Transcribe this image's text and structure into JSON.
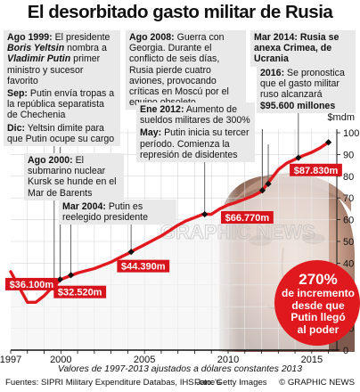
{
  "title": "El desorbitado gasto militar de Rusia",
  "annotations": {
    "ago1999": {
      "head": "Ago 1999:",
      "t1": " El presidente ",
      "n1": "Boris Yeltsin",
      "t2": " nombra a ",
      "n2": "Vladimir Putin",
      "t3": " primer ministro y sucesor favorito"
    },
    "sep": {
      "head": "Sep:",
      "text": " Putin envía tropas a la república separatista de Chechenia"
    },
    "dic": {
      "head": "Dic:",
      "text": " Yeltsin dimite para que Putin ocupe su cargo"
    },
    "ago2000": {
      "head": "Ago 2000:",
      "text": " El submarino nuclear Kursk se hunde en el Mar de Barents"
    },
    "mar2004": {
      "head": "Mar 2004:",
      "text": " Putin es reelegido presidente"
    },
    "ago2008": {
      "head": "Ago 2008:",
      "text": " Guerra con Georgia. Durante el conflicto de seis días, Rusia pierde cuatro aviones, provocando críticas en Moscú por el equipo obsoleto"
    },
    "ene2012": {
      "head": "Ene 2012:",
      "text": " Aumento de sueldos militares de 300%"
    },
    "may": {
      "head": "May:",
      "text": " Putin inicia su tercer período. Comienza la represión de disidentes"
    },
    "mar2014": {
      "head": "Mar 2014:",
      "text": " Rusia se anexa Crimea, de Ucrania"
    },
    "y2016": {
      "head": "2016:",
      "text": " Se pronostica que el gasto militar ruso alcanzará ",
      "value": "$95.600 millones"
    }
  },
  "increase": {
    "pct": "270%",
    "line1": "de incremento",
    "line2": "desde que",
    "line3": "Putin llegó",
    "line4": "al poder"
  },
  "footnote": "Valores de 1997-2013 ajustados a dólares constantes 2013",
  "source": "Fuentes: SIPRI Military Expenditure Databas, IHS Jane's",
  "photo_credit": "Foto: Getty Images",
  "credit": "© GRAPHIC NEWS",
  "watermark": "GRAPHIC NEWS",
  "colors": {
    "line": "#e0191f",
    "label_bg": "#d7141c",
    "box_bg": "#e9e9e9",
    "circle": "#e0191f",
    "marker": "#111111"
  },
  "chart_data": {
    "type": "line",
    "title": "El desorbitado gasto militar de Rusia",
    "ylabel": "$mdm",
    "xlim": [
      1997,
      2016.5
    ],
    "ylim": [
      0,
      100
    ],
    "x_ticks": [
      1997,
      2000,
      2005,
      2010,
      2015
    ],
    "y_ticks": [
      0,
      10,
      20,
      30,
      40,
      50,
      60,
      70,
      80,
      90,
      100
    ],
    "series": [
      {
        "values_x": [
          1997,
          1997.5,
          1998,
          1998.5,
          1999,
          1999.5,
          2000,
          2000.5,
          2001,
          2001.5,
          2002,
          2002.5,
          2003,
          2003.5,
          2004,
          2004.5,
          2005,
          2005.5,
          2006,
          2006.5,
          2007,
          2007.5,
          2008,
          2008.5,
          2009,
          2009.5,
          2010,
          2010.5,
          2011,
          2011.5,
          2012,
          2012.5,
          2013,
          2013.5,
          2014,
          2014.5,
          2015,
          2015.5,
          2016
        ],
        "values_y": [
          36.1,
          29,
          22,
          22,
          25,
          29,
          32.5,
          34,
          35.5,
          36.5,
          37.5,
          39,
          40.5,
          42.5,
          44.4,
          46.5,
          48.5,
          50.5,
          52.5,
          55,
          57.5,
          59.5,
          61,
          62.5,
          62.5,
          65,
          66.8,
          68,
          69.5,
          71,
          73,
          78,
          83,
          86,
          87.8,
          89.5,
          91,
          93,
          95.6
        ]
      }
    ],
    "value_labels": [
      {
        "x": 1997,
        "y": 36.1,
        "label": "$36.100m"
      },
      {
        "x": 2000,
        "y": 32.5,
        "label": "$32.520m"
      },
      {
        "x": 2004,
        "y": 44.4,
        "label": "$44.390m"
      },
      {
        "x": 2010,
        "y": 66.8,
        "label": "$66.770m"
      },
      {
        "x": 2014,
        "y": 87.8,
        "label": "$87.830m"
      }
    ],
    "event_markers": [
      {
        "x": 1999.6,
        "y": 30.5
      },
      {
        "x": 1999.95,
        "y": 32.5
      },
      {
        "x": 2000.6,
        "y": 34.5
      },
      {
        "x": 2004.2,
        "y": 45.2
      },
      {
        "x": 2008.6,
        "y": 62.5
      },
      {
        "x": 2012.05,
        "y": 73.5
      },
      {
        "x": 2012.4,
        "y": 76.5
      },
      {
        "x": 2014.2,
        "y": 88.5
      },
      {
        "x": 2016,
        "y": 95.6
      }
    ]
  }
}
